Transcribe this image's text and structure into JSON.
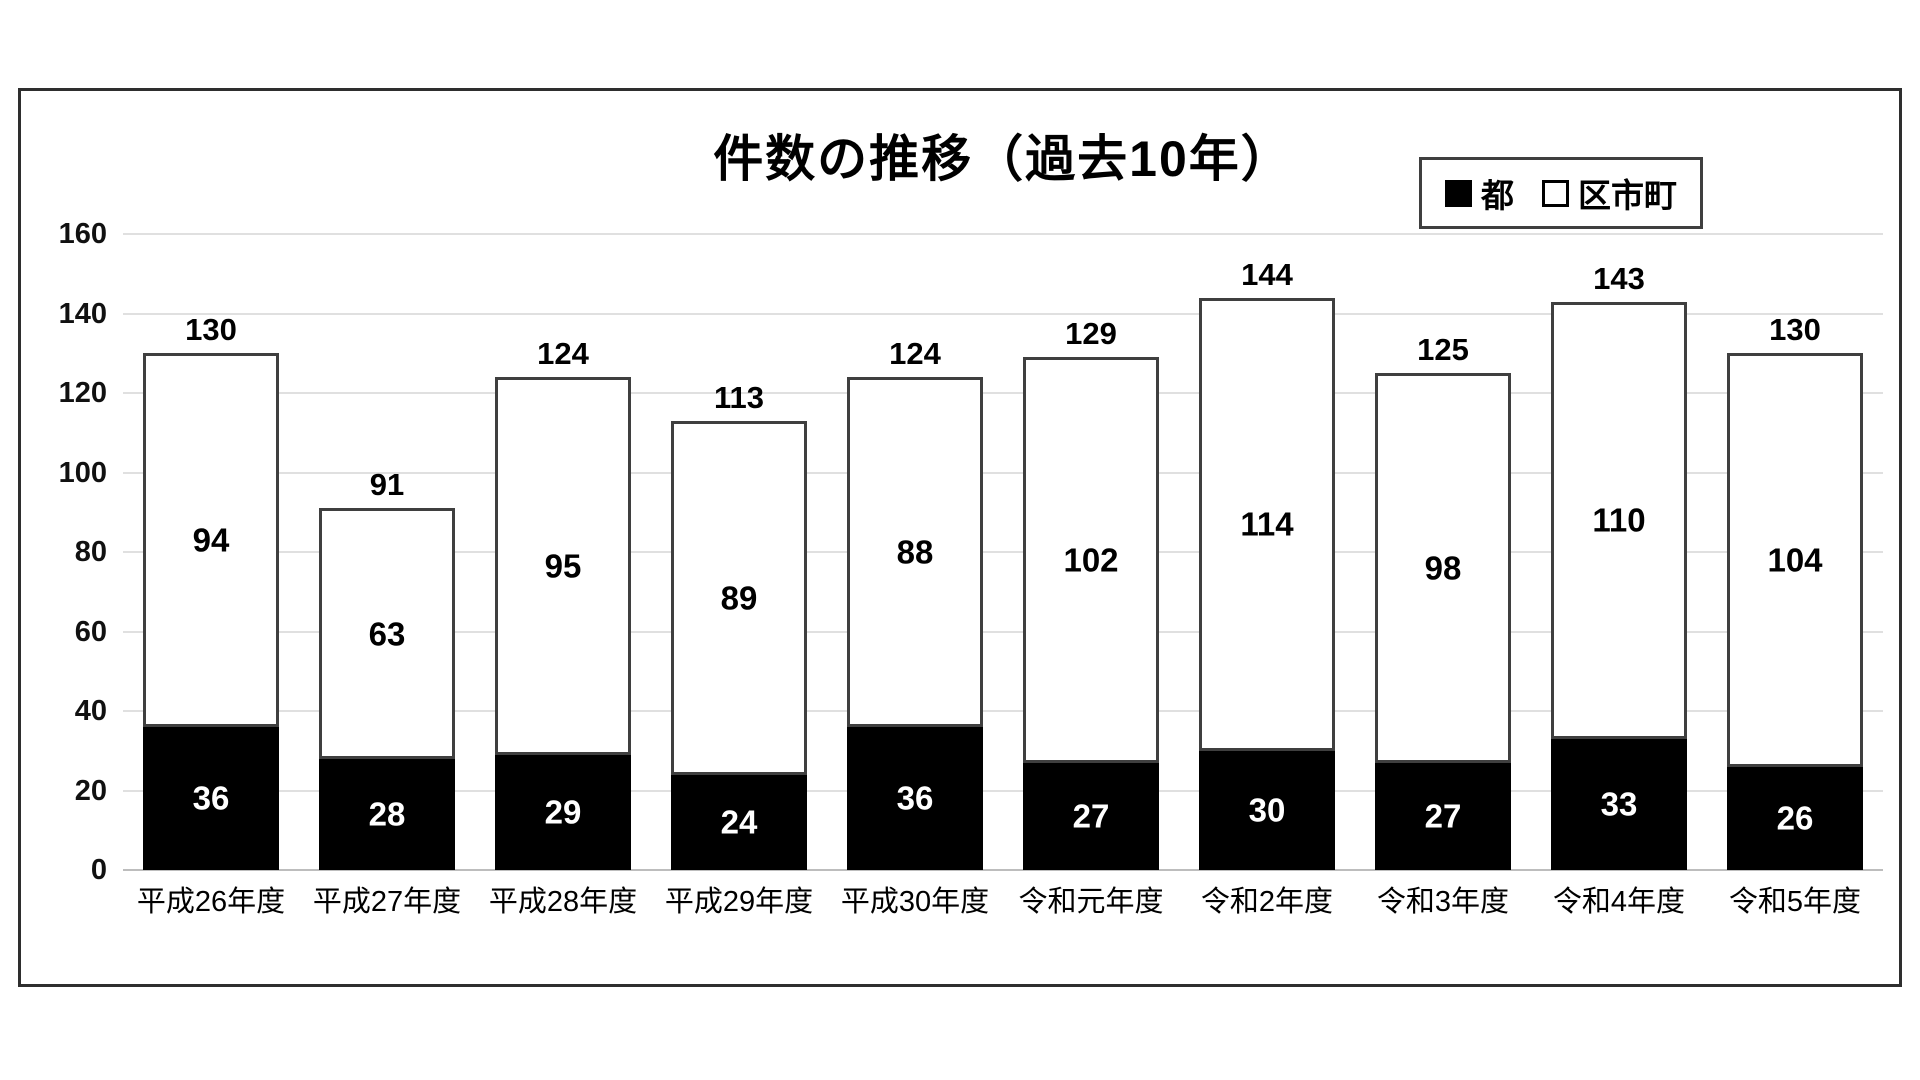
{
  "chart_data": {
    "type": "bar",
    "stacked": true,
    "title": "件数の推移（過去10年）",
    "categories": [
      "平成26年度",
      "平成27年度",
      "平成28年度",
      "平成29年度",
      "平成30年度",
      "令和元年度",
      "令和2年度",
      "令和3年度",
      "令和4年度",
      "令和5年度"
    ],
    "series": [
      {
        "key": "to",
        "name": "都",
        "fill": "#000000",
        "label_color": "#ffffff",
        "values": [
          36,
          28,
          29,
          24,
          36,
          27,
          30,
          27,
          33,
          26
        ]
      },
      {
        "key": "kushicho",
        "name": "区市町",
        "fill": "#ffffff",
        "label_color": "#000000",
        "values": [
          94,
          63,
          95,
          89,
          88,
          102,
          114,
          98,
          110,
          104
        ]
      }
    ],
    "totals": [
      130,
      91,
      124,
      113,
      124,
      129,
      144,
      125,
      143,
      130
    ],
    "y_axis": {
      "min": 0,
      "max": 160,
      "step": 20,
      "ticks": [
        "0",
        "20",
        "40",
        "60",
        "80",
        "100",
        "120",
        "140",
        "160"
      ]
    },
    "grid": true,
    "legend_position": "top-right"
  },
  "colors": {
    "bar_border": "#3f3f3f",
    "gridline": "#e0e0e0",
    "baseline": "#bdbdbd",
    "frame_border": "#2e2e2e",
    "black_fill": "#000000",
    "white_fill": "#ffffff"
  }
}
